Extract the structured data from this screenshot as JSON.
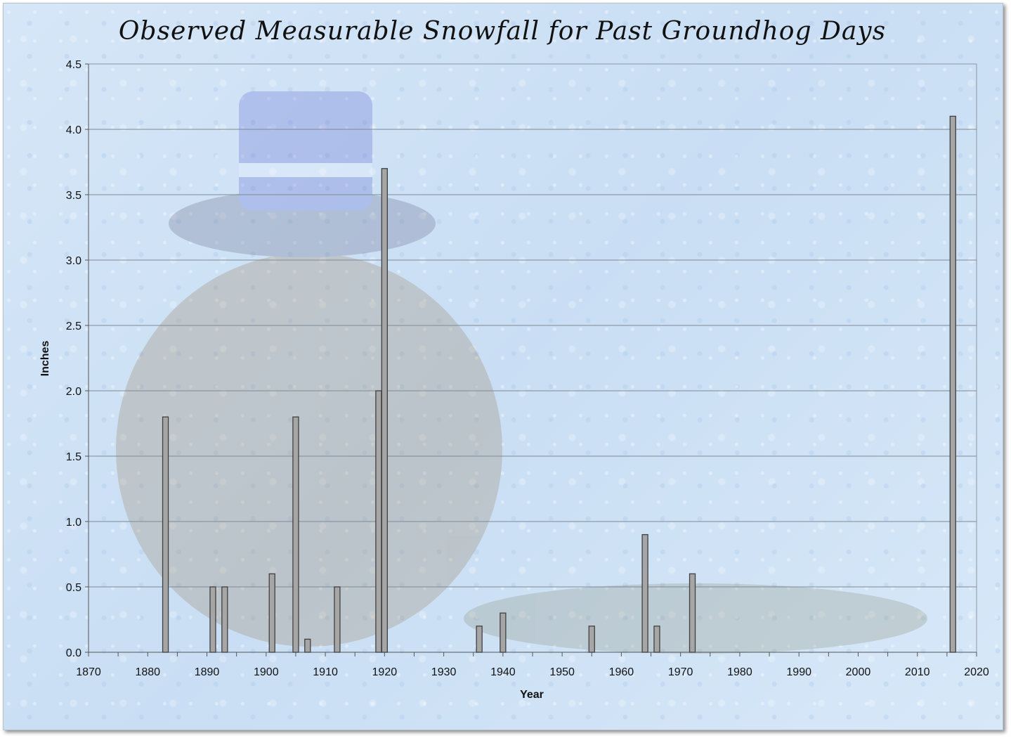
{
  "chart_data": {
    "type": "bar",
    "title": "Observed Measurable Snowfall for Past Groundhog Days",
    "xlabel": "Year",
    "ylabel": "Inches",
    "xlim": [
      1870,
      2020
    ],
    "ylim": [
      0,
      4.5
    ],
    "x_ticks": [
      "1870",
      "1880",
      "1890",
      "1900",
      "1910",
      "1920",
      "1930",
      "1940",
      "1950",
      "1960",
      "1970",
      "1980",
      "1990",
      "2000",
      "2010",
      "2020"
    ],
    "y_ticks": [
      "0.0",
      "0.5",
      "1.0",
      "1.5",
      "2.0",
      "2.5",
      "3.0",
      "3.5",
      "4.0",
      "4.5"
    ],
    "grid": "horizontal",
    "legend": "none",
    "bar_color": "#a6a6a6",
    "bar_edge_color": "#404040",
    "background": "light blue snowflake texture with faded groundhog illustration",
    "series": [
      {
        "x": [
          1883,
          1891,
          1893,
          1901,
          1905,
          1907,
          1912,
          1919,
          1920,
          1936,
          1940,
          1955,
          1964,
          1966,
          1972,
          2016
        ],
        "values": [
          1.8,
          0.5,
          0.5,
          0.6,
          1.8,
          0.1,
          0.5,
          2.0,
          3.7,
          0.2,
          0.3,
          0.2,
          0.9,
          0.2,
          0.6,
          4.1
        ]
      }
    ]
  }
}
